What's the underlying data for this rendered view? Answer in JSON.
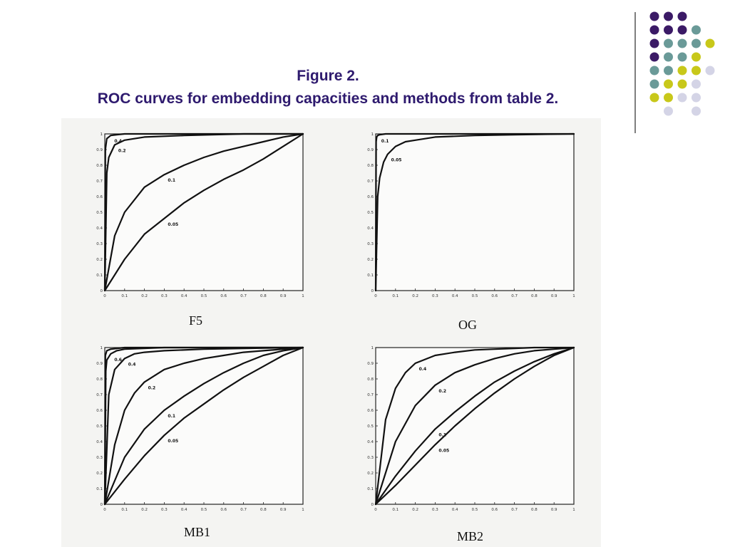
{
  "title": {
    "line1": "Figure 2.",
    "line2": "ROC curves for embedding capacities and methods from table 2."
  },
  "colors": {
    "title": "#2e1a6e",
    "dot_purple": "#3b1a66",
    "dot_teal": "#6a9a98",
    "dot_yellow": "#c8c81a",
    "dot_lavender": "#d4d4e6",
    "divider": "#555555"
  },
  "chart_data": [
    {
      "type": "line",
      "caption": "F5",
      "xlim": [
        0,
        1
      ],
      "ylim": [
        0,
        1
      ],
      "xticks": [
        "0",
        "0.1",
        "0.2",
        "0.3",
        "0.4",
        "0.5",
        "0.6",
        "0.7",
        "0.8",
        "0.9",
        "1"
      ],
      "yticks": [
        "0",
        "0.1",
        "0.2",
        "0.3",
        "0.4",
        "0.5",
        "0.6",
        "0.7",
        "0.8",
        "0.9",
        "1"
      ],
      "series": [
        {
          "name": "0.4",
          "x": [
            0,
            0.003,
            0.01,
            0.03,
            0.06,
            0.1,
            0.2,
            0.5,
            1
          ],
          "y": [
            0,
            0.9,
            0.97,
            0.99,
            0.995,
            1,
            1,
            1,
            1
          ]
        },
        {
          "name": "0.2",
          "x": [
            0,
            0.01,
            0.02,
            0.05,
            0.1,
            0.2,
            0.4,
            0.7,
            1
          ],
          "y": [
            0,
            0.75,
            0.85,
            0.93,
            0.96,
            0.98,
            0.99,
            1,
            1
          ]
        },
        {
          "name": "0.1",
          "x": [
            0,
            0.05,
            0.1,
            0.2,
            0.3,
            0.4,
            0.5,
            0.6,
            0.7,
            0.8,
            0.9,
            1
          ],
          "y": [
            0,
            0.35,
            0.5,
            0.66,
            0.74,
            0.8,
            0.85,
            0.89,
            0.92,
            0.95,
            0.98,
            1
          ]
        },
        {
          "name": "0.05",
          "x": [
            0,
            0.1,
            0.2,
            0.3,
            0.4,
            0.5,
            0.6,
            0.7,
            0.8,
            0.9,
            1
          ],
          "y": [
            0,
            0.2,
            0.36,
            0.46,
            0.56,
            0.64,
            0.71,
            0.77,
            0.84,
            0.92,
            1
          ]
        }
      ]
    },
    {
      "type": "line",
      "caption": "OG",
      "xlim": [
        0,
        1
      ],
      "ylim": [
        0,
        1
      ],
      "xticks": [
        "0",
        "0.1",
        "0.2",
        "0.3",
        "0.4",
        "0.5",
        "0.6",
        "0.7",
        "0.8",
        "0.9",
        "1"
      ],
      "yticks": [
        "0",
        "0.1",
        "0.2",
        "0.3",
        "0.4",
        "0.5",
        "0.6",
        "0.7",
        "0.8",
        "0.9",
        "1"
      ],
      "series": [
        {
          "name": "0.1",
          "x": [
            0,
            0.002,
            0.005,
            0.01,
            0.02,
            0.05,
            1
          ],
          "y": [
            0,
            0.95,
            0.98,
            0.99,
            0.995,
            1,
            1
          ]
        },
        {
          "name": "0.05",
          "x": [
            0,
            0.01,
            0.02,
            0.04,
            0.06,
            0.1,
            0.15,
            0.2,
            0.3,
            0.5,
            0.7,
            1
          ],
          "y": [
            0,
            0.6,
            0.72,
            0.82,
            0.87,
            0.92,
            0.95,
            0.96,
            0.98,
            0.99,
            0.995,
            1
          ]
        }
      ]
    },
    {
      "type": "line",
      "caption": "MB1",
      "xlim": [
        0,
        1
      ],
      "ylim": [
        0,
        1
      ],
      "xticks": [
        "0",
        "0.1",
        "0.2",
        "0.3",
        "0.4",
        "0.5",
        "0.6",
        "0.7",
        "0.8",
        "0.9",
        "1"
      ],
      "yticks": [
        "0",
        "0.1",
        "0.2",
        "0.3",
        "0.4",
        "0.5",
        "0.6",
        "0.7",
        "0.8",
        "0.9",
        "1"
      ],
      "series": [
        {
          "name": "",
          "x": [
            0,
            0.003,
            0.01,
            0.03,
            0.1,
            1
          ],
          "y": [
            0,
            0.95,
            0.98,
            0.99,
            1,
            1
          ]
        },
        {
          "name": "0.6",
          "x": [
            0,
            0.005,
            0.01,
            0.03,
            0.06,
            0.1,
            0.3,
            1
          ],
          "y": [
            0,
            0.85,
            0.92,
            0.96,
            0.98,
            0.99,
            1,
            1
          ]
        },
        {
          "name": "0.4",
          "x": [
            0,
            0.02,
            0.05,
            0.1,
            0.15,
            0.2,
            0.3,
            0.5,
            0.7,
            1
          ],
          "y": [
            0,
            0.7,
            0.86,
            0.93,
            0.96,
            0.97,
            0.98,
            0.99,
            0.995,
            1
          ]
        },
        {
          "name": "0.2",
          "x": [
            0,
            0.05,
            0.1,
            0.15,
            0.2,
            0.3,
            0.4,
            0.5,
            0.6,
            0.7,
            0.8,
            0.9,
            1
          ],
          "y": [
            0,
            0.38,
            0.6,
            0.71,
            0.78,
            0.86,
            0.9,
            0.93,
            0.95,
            0.97,
            0.98,
            0.99,
            1
          ]
        },
        {
          "name": "0.1",
          "x": [
            0,
            0.1,
            0.2,
            0.3,
            0.4,
            0.5,
            0.6,
            0.7,
            0.8,
            0.9,
            1
          ],
          "y": [
            0,
            0.3,
            0.48,
            0.6,
            0.69,
            0.77,
            0.84,
            0.9,
            0.95,
            0.98,
            1
          ]
        },
        {
          "name": "0.05",
          "x": [
            0,
            0.1,
            0.2,
            0.3,
            0.4,
            0.5,
            0.6,
            0.7,
            0.8,
            0.9,
            1
          ],
          "y": [
            0,
            0.16,
            0.31,
            0.44,
            0.55,
            0.64,
            0.73,
            0.81,
            0.88,
            0.95,
            1
          ]
        }
      ]
    },
    {
      "type": "line",
      "caption": "MB2",
      "xlim": [
        0,
        1
      ],
      "ylim": [
        0,
        1
      ],
      "xticks": [
        "0",
        "0.1",
        "0.2",
        "0.3",
        "0.4",
        "0.5",
        "0.6",
        "0.7",
        "0.8",
        "0.9",
        "1"
      ],
      "yticks": [
        "0",
        "0.1",
        "0.2",
        "0.3",
        "0.4",
        "0.5",
        "0.6",
        "0.7",
        "0.8",
        "0.9",
        "1"
      ],
      "series": [
        {
          "name": "0.4",
          "x": [
            0,
            0.05,
            0.1,
            0.15,
            0.2,
            0.3,
            0.4,
            0.5,
            0.6,
            0.7,
            0.8,
            1
          ],
          "y": [
            0,
            0.54,
            0.74,
            0.84,
            0.9,
            0.95,
            0.97,
            0.985,
            0.99,
            0.995,
            1,
            1
          ]
        },
        {
          "name": "0.2",
          "x": [
            0,
            0.1,
            0.2,
            0.3,
            0.4,
            0.5,
            0.6,
            0.7,
            0.8,
            0.9,
            1
          ],
          "y": [
            0,
            0.4,
            0.63,
            0.76,
            0.84,
            0.89,
            0.93,
            0.96,
            0.98,
            0.99,
            1
          ]
        },
        {
          "name": "0.1",
          "x": [
            0,
            0.1,
            0.2,
            0.3,
            0.4,
            0.5,
            0.6,
            0.7,
            0.8,
            0.9,
            1
          ],
          "y": [
            0,
            0.18,
            0.34,
            0.48,
            0.59,
            0.69,
            0.78,
            0.85,
            0.91,
            0.96,
            1
          ]
        },
        {
          "name": "0.05",
          "x": [
            0,
            0.1,
            0.2,
            0.3,
            0.4,
            0.5,
            0.6,
            0.7,
            0.8,
            0.9,
            1
          ],
          "y": [
            0,
            0.12,
            0.25,
            0.38,
            0.5,
            0.61,
            0.71,
            0.8,
            0.88,
            0.95,
            1
          ]
        }
      ]
    }
  ]
}
